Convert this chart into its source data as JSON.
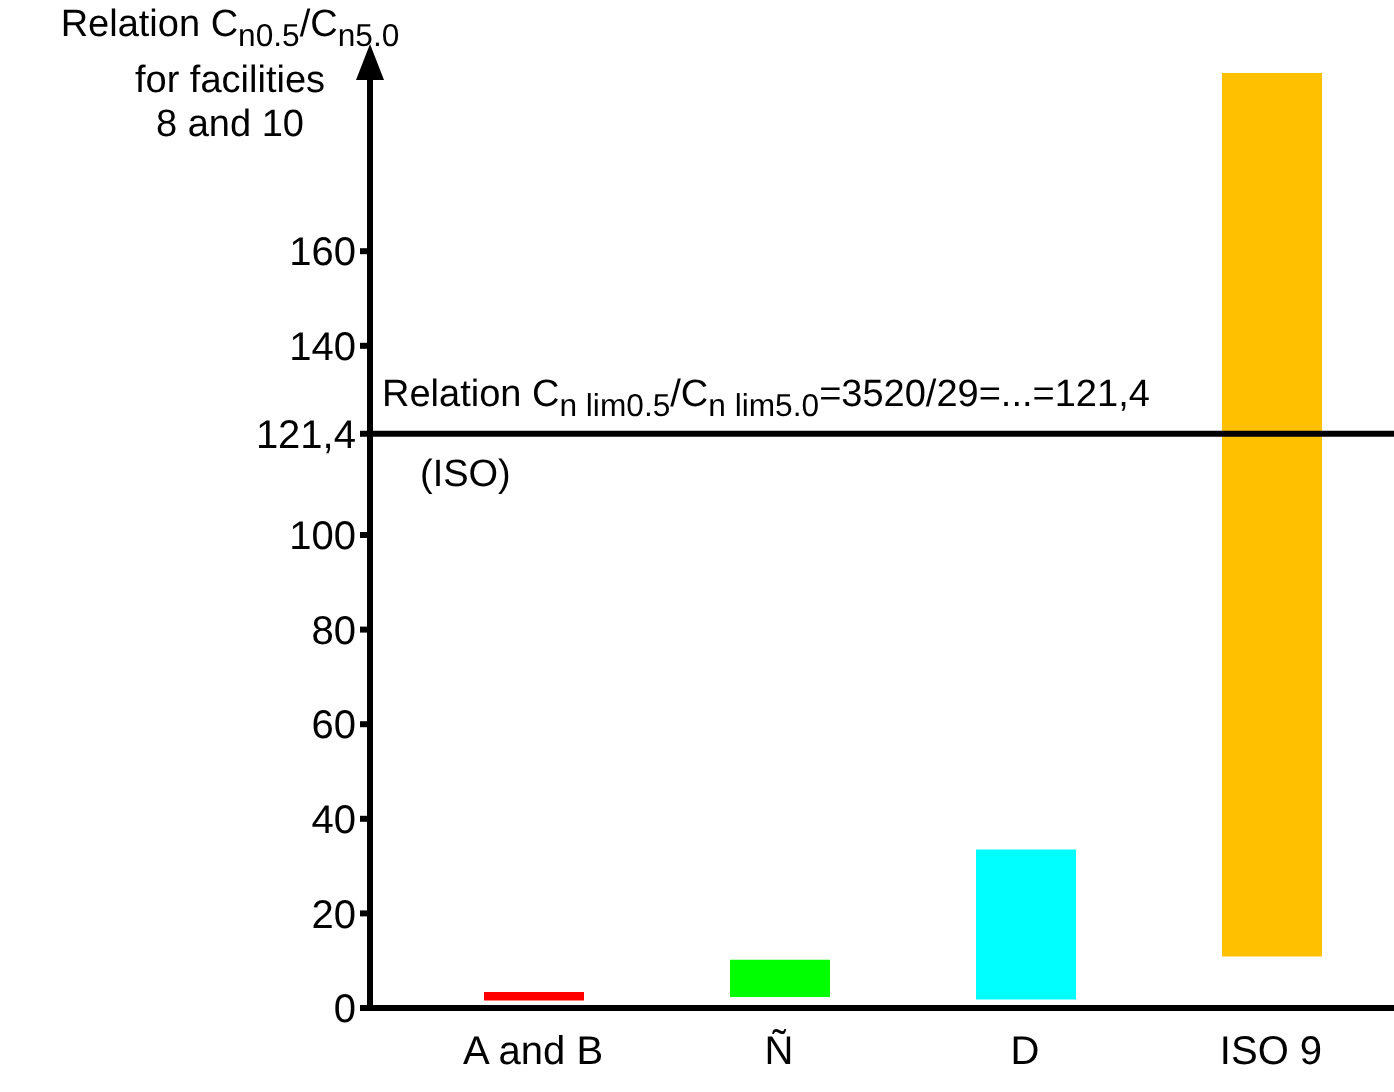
{
  "chart_data": {
    "type": "bar",
    "ylabel": "Relation C$_{n0.5}$/C$_{n5.0}$\nfor facilities\n8 and 10",
    "categories": [
      "A and B",
      "Ñ",
      "D",
      "ISO 9"
    ],
    "base": [
      1.6,
      2.3,
      1.8,
      10.9
    ],
    "values": [
      1.8,
      7.9,
      31.7,
      186.8
    ],
    "colors": [
      "#ff0000",
      "#00ff00",
      "#00ffff",
      "#ffc000"
    ],
    "ylim": [
      0,
      200
    ],
    "yticks": [
      0,
      20,
      40,
      60,
      80,
      100,
      {
        "value": 121.4,
        "label": "121,4"
      },
      140,
      160
    ],
    "ref_lines": [
      {
        "axis": "y",
        "value": 121.4,
        "label": "Relation C$_{n lim0.5}$/C$_{n lim5.0}$=3520/29=...=121,4",
        "color": "#000000"
      }
    ],
    "annotations": [
      "(ISO)"
    ],
    "grid": false,
    "legend": false
  }
}
